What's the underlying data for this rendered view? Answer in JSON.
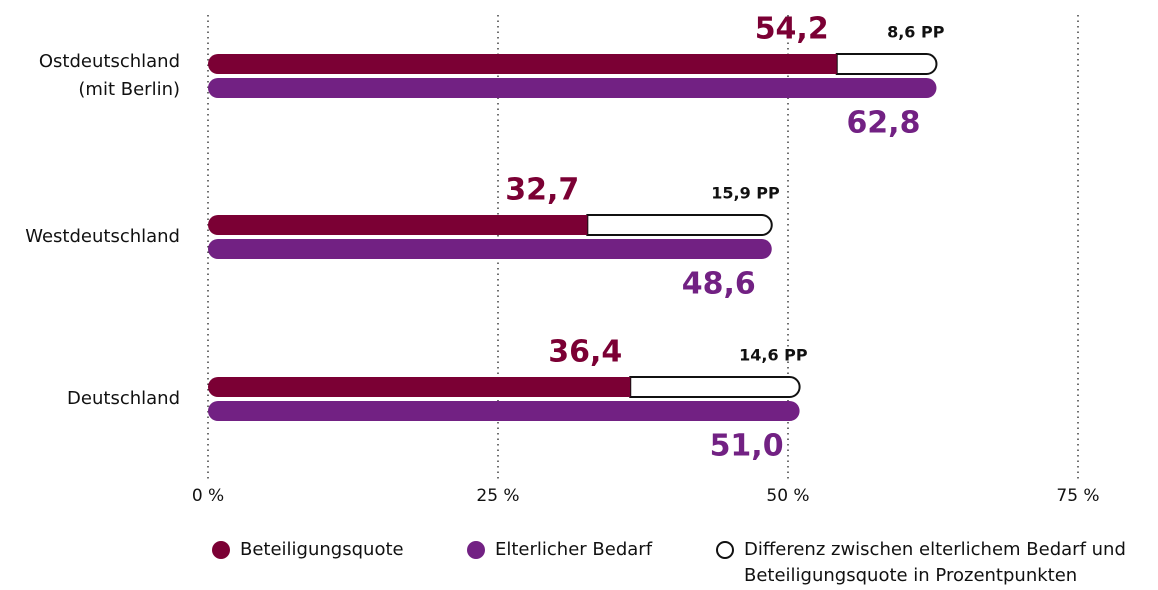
{
  "chart_data": {
    "type": "bar",
    "orientation": "horizontal",
    "categories": [
      [
        "Ostdeutschland",
        "(mit Berlin)"
      ],
      [
        "Westdeutschland"
      ],
      [
        "Deutschland"
      ]
    ],
    "series": [
      {
        "name": "Beteiligungsquote",
        "color": "#7b0034",
        "values": [
          54.2,
          32.7,
          36.4
        ],
        "value_labels": [
          "54,2",
          "32,7",
          "36,4"
        ]
      },
      {
        "name": "Elterlicher Bedarf",
        "color": "#722183",
        "values": [
          62.8,
          48.6,
          51.0
        ],
        "value_labels": [
          "62,8",
          "48,6",
          "51,0"
        ]
      },
      {
        "name": "Differenz zwischen elterlichem Bedarf und Beteiligungsquote in Prozentpunkten",
        "color": "#ffffff",
        "values": [
          8.6,
          15.9,
          14.6
        ],
        "value_labels": [
          "8,6 PP",
          "15,9 PP",
          "14,6 PP"
        ]
      }
    ],
    "xlim": [
      0,
      75
    ],
    "xticks": [
      {
        "value": 0,
        "label": "0 %"
      },
      {
        "value": 25,
        "label": "25 %"
      },
      {
        "value": 50,
        "label": "50 %"
      },
      {
        "value": 75,
        "label": "75 %"
      }
    ],
    "grid": true
  }
}
